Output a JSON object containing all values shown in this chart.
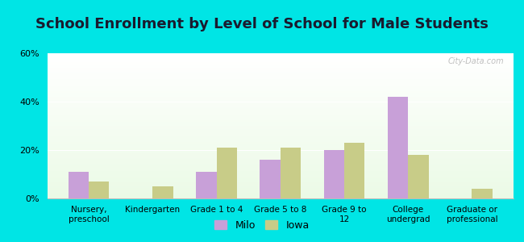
{
  "title": "School Enrollment by Level of School for Male Students",
  "categories": [
    "Nursery,\npreschool",
    "Kindergarten",
    "Grade 1 to 4",
    "Grade 5 to 8",
    "Grade 9 to\n12",
    "College\nundergrad",
    "Graduate or\nprofessional"
  ],
  "milo_values": [
    11,
    0,
    11,
    16,
    20,
    42,
    0
  ],
  "iowa_values": [
    7,
    5,
    21,
    21,
    23,
    18,
    4
  ],
  "milo_color": "#c8a0d8",
  "iowa_color": "#c8cc88",
  "background_color": "#00e5e5",
  "ylim": [
    0,
    60
  ],
  "yticks": [
    0,
    20,
    40,
    60
  ],
  "ytick_labels": [
    "0%",
    "20%",
    "40%",
    "60%"
  ],
  "bar_width": 0.32,
  "legend_labels": [
    "Milo",
    "Iowa"
  ],
  "title_fontsize": 13,
  "watermark": "City-Data.com"
}
